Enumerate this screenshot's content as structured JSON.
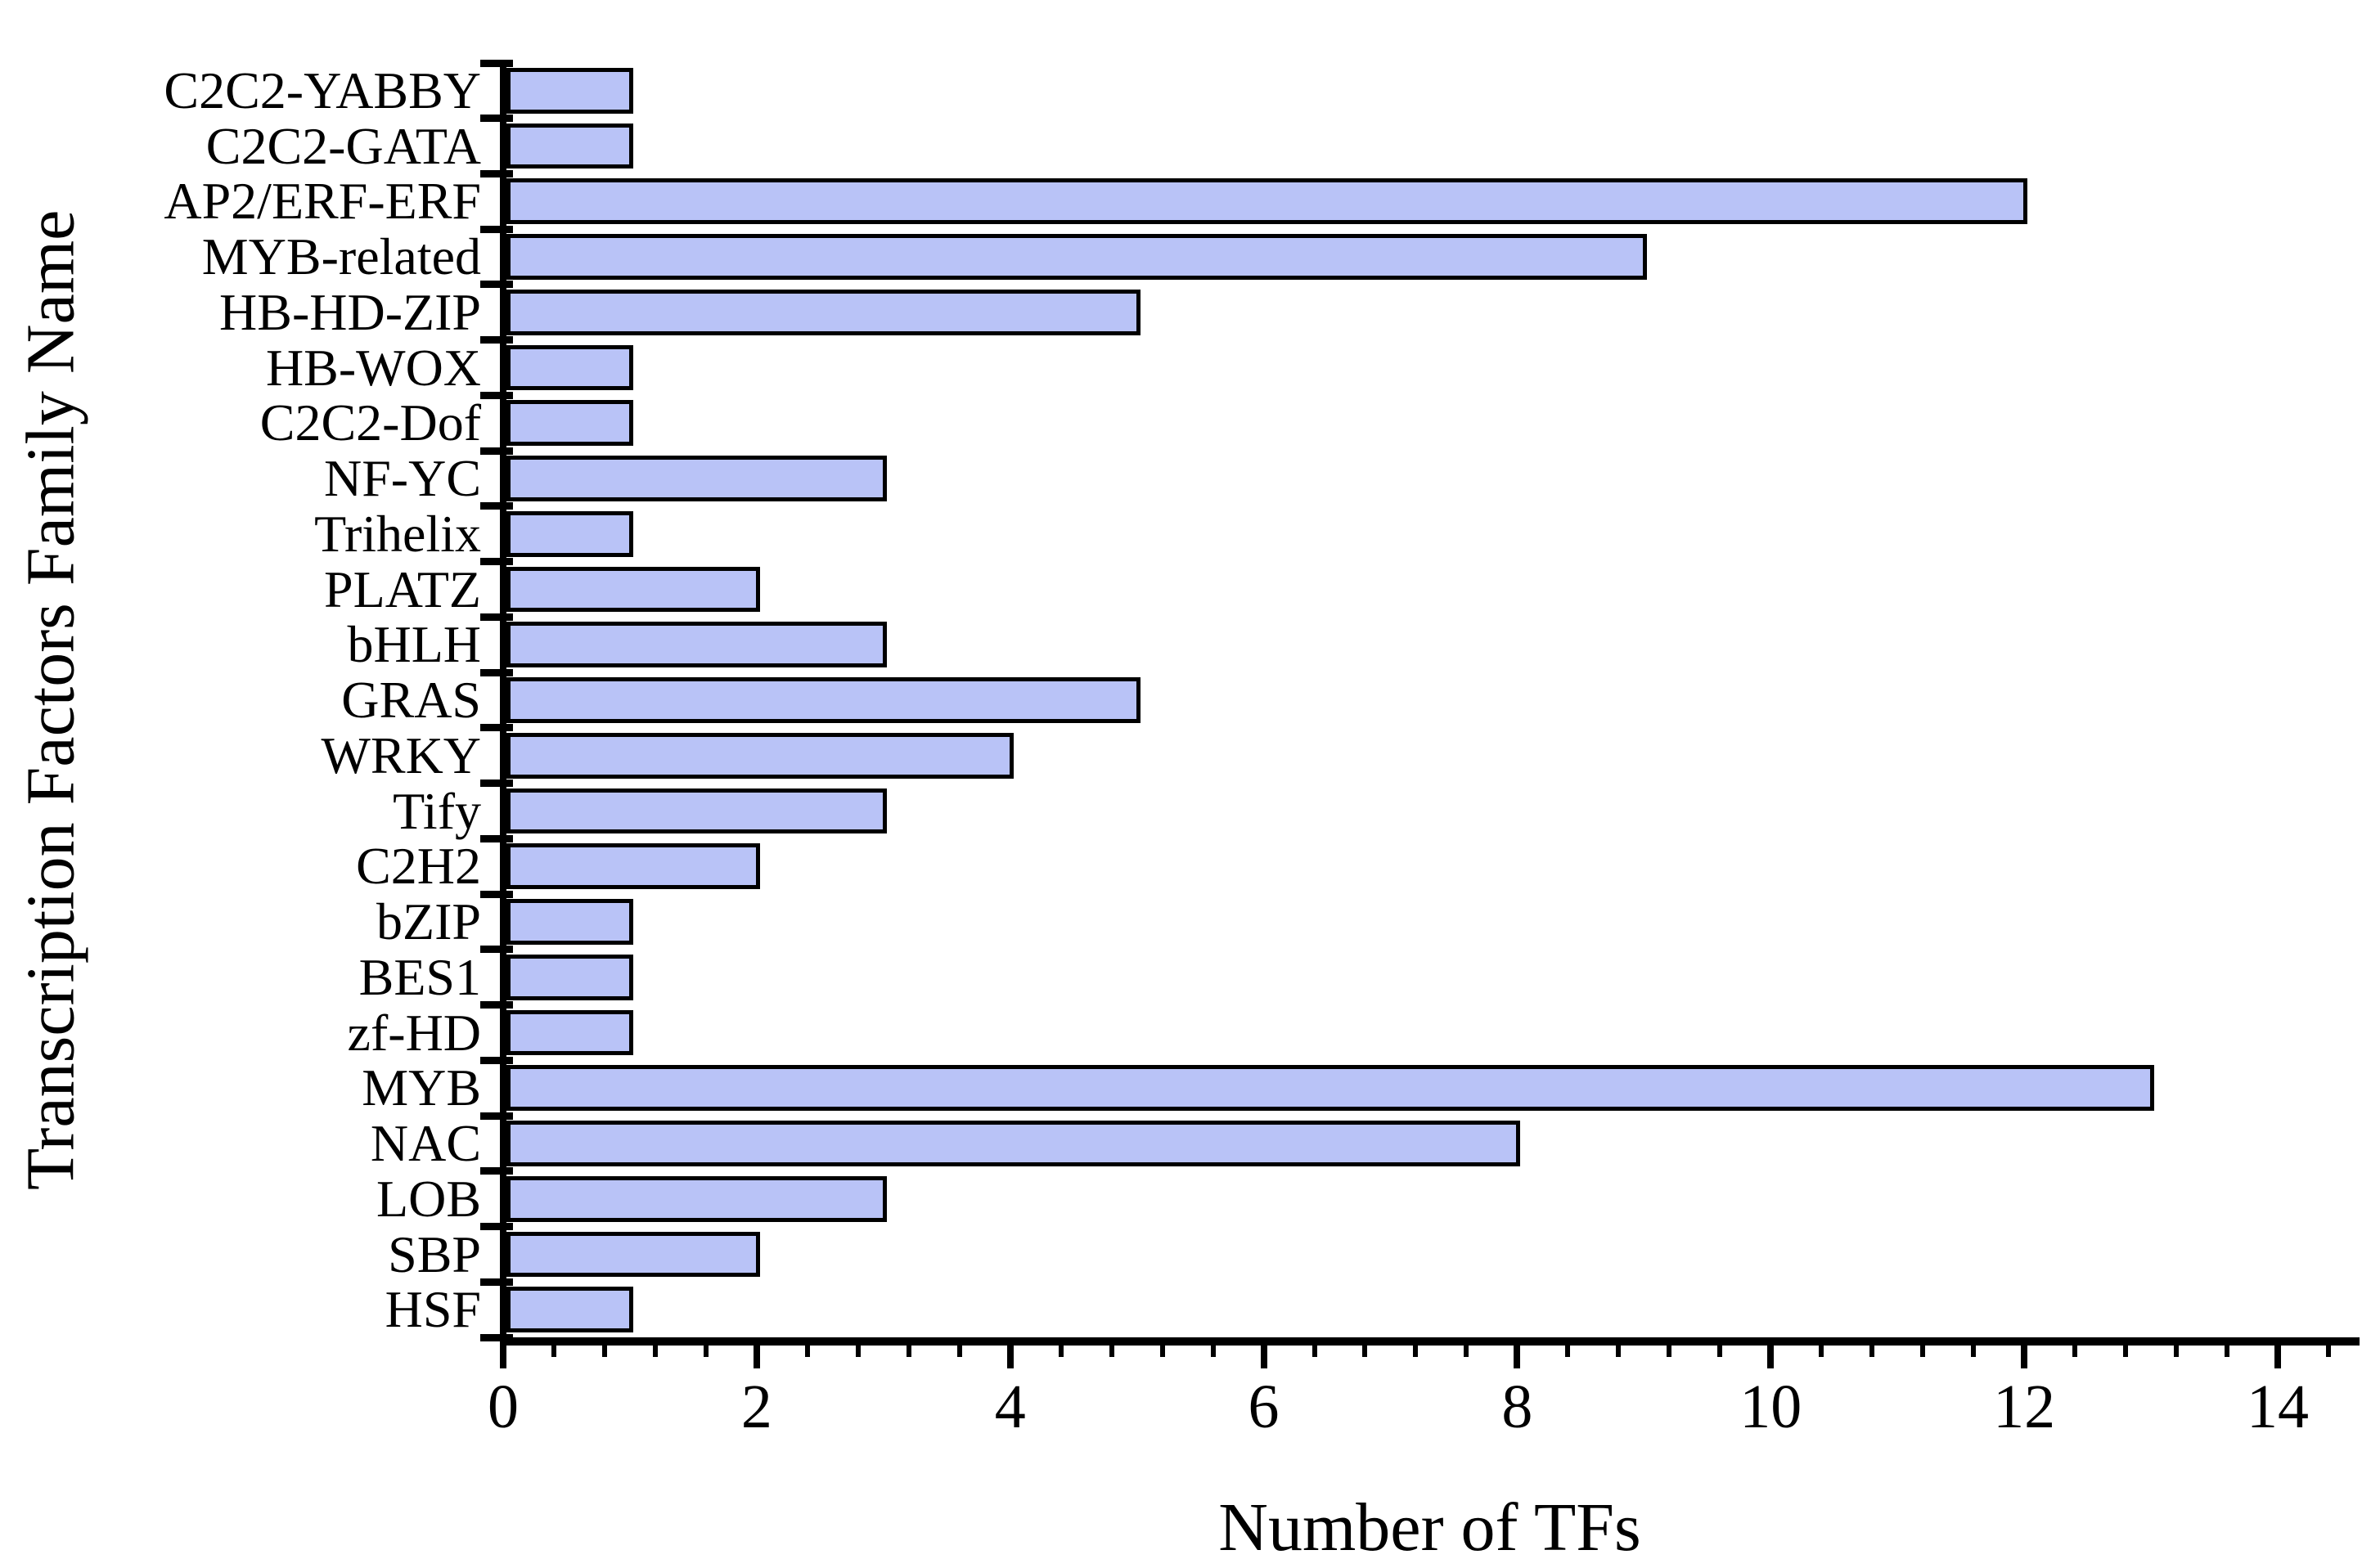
{
  "chart_data": {
    "type": "bar",
    "orientation": "horizontal",
    "xlabel": "Number of TFs",
    "ylabel": "Transcription Factors Family Name",
    "categories": [
      "C2C2-YABBY",
      "C2C2-GATA",
      "AP2/ERF-ERF",
      "MYB-related",
      "HB-HD-ZIP",
      "HB-WOX",
      "C2C2-Dof",
      "NF-YC",
      "Trihelix",
      "PLATZ",
      "bHLH",
      "GRAS",
      "WRKY",
      "Tify",
      "C2H2",
      "bZIP",
      "BES1",
      "zf-HD",
      "MYB",
      "NAC",
      "LOB",
      "SBP",
      "HSF"
    ],
    "values": [
      1,
      1,
      12,
      9,
      5,
      1,
      1,
      3,
      1,
      2,
      3,
      5,
      4,
      3,
      2,
      1,
      1,
      1,
      13,
      8,
      3,
      2,
      1
    ],
    "xlim": [
      0,
      14.62
    ],
    "x_major_ticks": [
      0,
      2,
      4,
      6,
      8,
      10,
      12,
      14
    ],
    "x_tick_labels": [
      "0",
      "2",
      "4",
      "6",
      "8",
      "10",
      "12",
      "14"
    ],
    "x_minor_step": 0.4,
    "bar_color": "#b9c3f7",
    "bar_border_color": "#000000",
    "axis_color": "#000000",
    "grid": false,
    "legend": null
  }
}
